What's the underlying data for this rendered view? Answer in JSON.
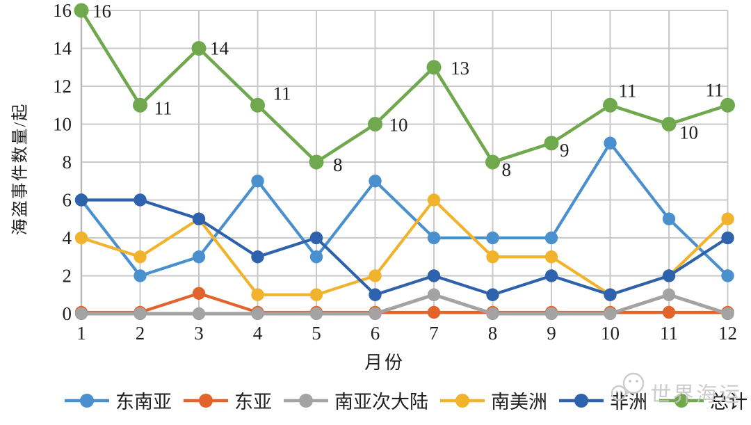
{
  "watermark": {
    "text": "世界海运"
  },
  "chart_data": {
    "type": "line",
    "title": "",
    "xlabel": "月份",
    "ylabel": "海盗事件数量/起",
    "x": [
      1,
      2,
      3,
      4,
      5,
      6,
      7,
      8,
      9,
      10,
      11,
      12
    ],
    "ylim": [
      0,
      16
    ],
    "ytick_step": 2,
    "grid": true,
    "grid_color": "#c9c9c9",
    "legend_position": "bottom",
    "series": [
      {
        "id": "southeast-asia",
        "name": "东南亚",
        "color": "#4a8fce",
        "values": [
          6,
          2,
          3,
          7,
          3,
          7,
          4,
          4,
          4,
          9,
          5,
          2
        ]
      },
      {
        "id": "east-asia",
        "name": "东亚",
        "color": "#e2632c",
        "values": [
          0,
          0,
          1,
          0,
          0,
          0,
          0,
          0,
          0,
          0,
          0,
          0
        ]
      },
      {
        "id": "south-asian-subcontinent",
        "name": "南亚次大陆",
        "color": "#a3a3a3",
        "values": [
          0,
          0,
          0,
          0,
          0,
          0,
          1,
          0,
          0,
          0,
          1,
          0
        ]
      },
      {
        "id": "south-america",
        "name": "南美洲",
        "color": "#f0b32b",
        "values": [
          4,
          3,
          5,
          1,
          1,
          2,
          6,
          3,
          3,
          1,
          2,
          5
        ]
      },
      {
        "id": "africa",
        "name": "非洲",
        "color": "#2e62ac",
        "values": [
          6,
          6,
          5,
          3,
          4,
          1,
          2,
          1,
          2,
          1,
          2,
          4
        ]
      },
      {
        "id": "total",
        "name": "总计",
        "color": "#70a84e",
        "values": [
          16,
          11,
          14,
          11,
          8,
          10,
          13,
          8,
          9,
          11,
          10,
          11
        ],
        "show_labels": true
      }
    ]
  }
}
